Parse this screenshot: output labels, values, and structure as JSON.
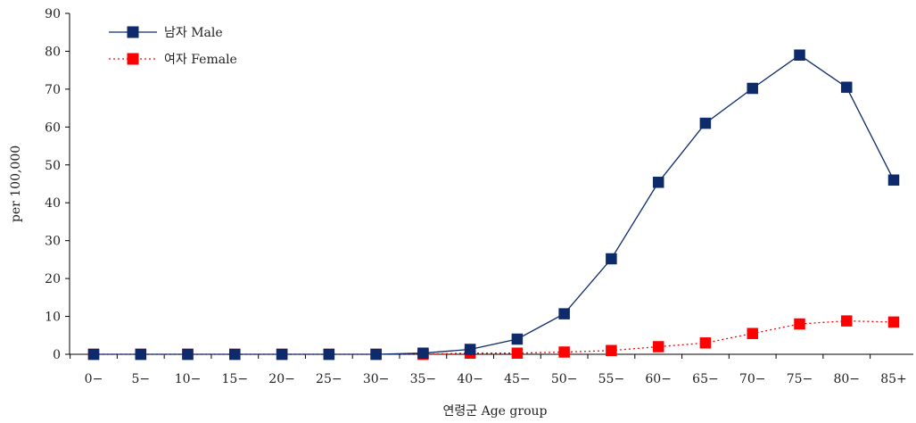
{
  "chart_data": {
    "type": "line",
    "title": "",
    "xlabel": "연령군 Age group",
    "ylabel": "per 100,000",
    "ylim": [
      0,
      90
    ],
    "yticks": [
      0,
      10,
      20,
      30,
      40,
      50,
      60,
      70,
      80,
      90
    ],
    "grid": false,
    "legend_position": "top-left",
    "categories": [
      "0−",
      "5−",
      "10−",
      "15−",
      "20−",
      "25−",
      "30−",
      "35−",
      "40−",
      "45−",
      "50−",
      "55−",
      "60−",
      "65−",
      "70−",
      "75−",
      "80−",
      "85+"
    ],
    "series": [
      {
        "name": "남자 Male",
        "color": "#0d2a6b",
        "line_style": "solid",
        "marker": "square",
        "values": [
          0,
          0,
          0,
          0,
          0,
          0,
          0,
          0.3,
          1.3,
          4.0,
          10.7,
          25.2,
          45.4,
          61.0,
          70.2,
          79.0,
          70.5,
          46.0
        ]
      },
      {
        "name": "여자 Female",
        "color": "#ff0000",
        "line_style": "dotted",
        "marker": "square",
        "values": [
          0,
          0,
          0,
          0,
          0,
          0,
          0,
          0,
          0.3,
          0.3,
          0.6,
          1.0,
          2.0,
          3.0,
          5.5,
          8.0,
          8.8,
          8.5
        ]
      }
    ]
  }
}
